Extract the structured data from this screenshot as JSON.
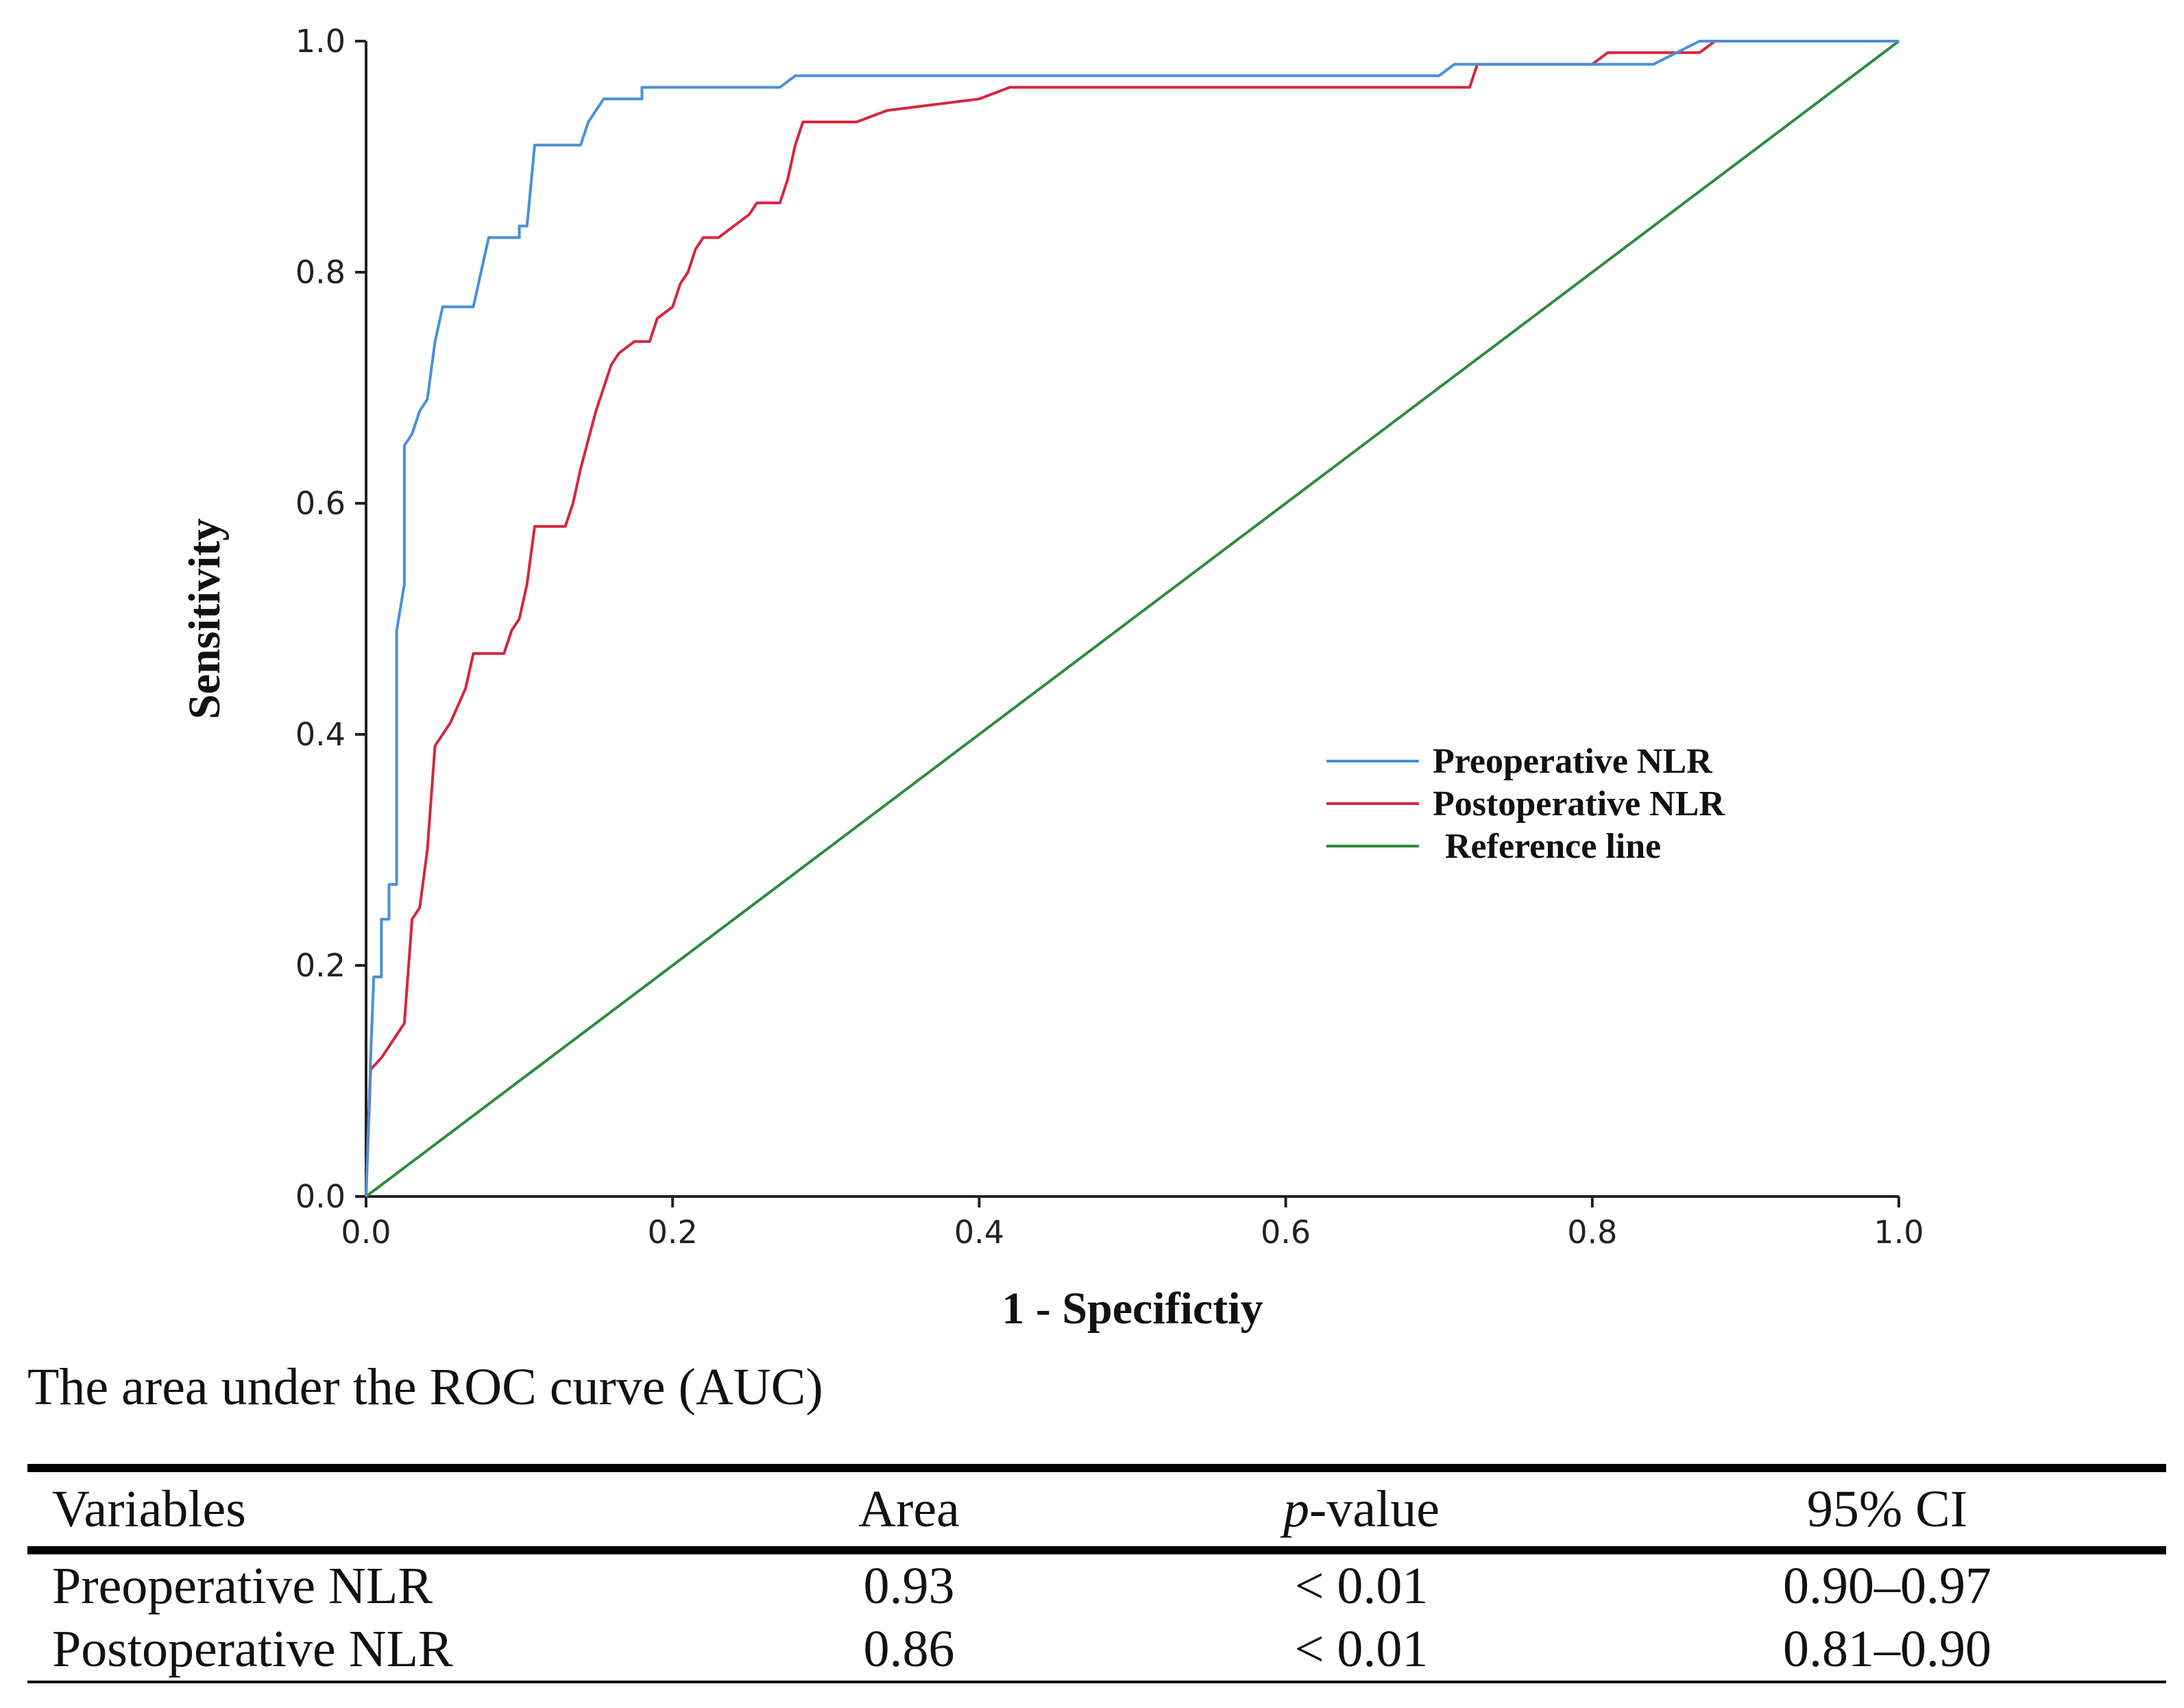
{
  "chart_data": {
    "type": "line",
    "title": "",
    "xlabel": "1 - Specifictiy",
    "ylabel": "Sensitivity",
    "xlim": [
      0.0,
      1.0
    ],
    "ylim": [
      0.0,
      1.0
    ],
    "x_ticks": [
      "0.0",
      "0.2",
      "0.4",
      "0.6",
      "0.8",
      "1.0"
    ],
    "y_ticks": [
      "0.0",
      "0.2",
      "0.4",
      "0.6",
      "0.8",
      "1.0"
    ],
    "grid": false,
    "legend_position": "center-right",
    "series": [
      {
        "name": "Preoperative NLR",
        "color": "#4a90d9",
        "points": [
          [
            0,
            0
          ],
          [
            0.003,
            0.12
          ],
          [
            0.005,
            0.19
          ],
          [
            0.01,
            0.19
          ],
          [
            0.01,
            0.24
          ],
          [
            0.015,
            0.24
          ],
          [
            0.015,
            0.27
          ],
          [
            0.02,
            0.27
          ],
          [
            0.02,
            0.49
          ],
          [
            0.025,
            0.53
          ],
          [
            0.025,
            0.65
          ],
          [
            0.03,
            0.66
          ],
          [
            0.035,
            0.68
          ],
          [
            0.04,
            0.69
          ],
          [
            0.045,
            0.74
          ],
          [
            0.05,
            0.77
          ],
          [
            0.07,
            0.77
          ],
          [
            0.075,
            0.8
          ],
          [
            0.08,
            0.83
          ],
          [
            0.1,
            0.83
          ],
          [
            0.1,
            0.84
          ],
          [
            0.105,
            0.84
          ],
          [
            0.11,
            0.91
          ],
          [
            0.14,
            0.91
          ],
          [
            0.145,
            0.93
          ],
          [
            0.155,
            0.95
          ],
          [
            0.18,
            0.95
          ],
          [
            0.18,
            0.96
          ],
          [
            0.27,
            0.96
          ],
          [
            0.28,
            0.97
          ],
          [
            0.7,
            0.97
          ],
          [
            0.71,
            0.98
          ],
          [
            0.84,
            0.98
          ],
          [
            0.855,
            0.99
          ],
          [
            0.87,
            1.0
          ],
          [
            1.0,
            1.0
          ]
        ]
      },
      {
        "name": "Postoperative NLR",
        "color": "#d7263d",
        "points": [
          [
            0,
            0
          ],
          [
            0.003,
            0.11
          ],
          [
            0.01,
            0.12
          ],
          [
            0.02,
            0.14
          ],
          [
            0.025,
            0.15
          ],
          [
            0.03,
            0.24
          ],
          [
            0.035,
            0.25
          ],
          [
            0.04,
            0.3
          ],
          [
            0.045,
            0.39
          ],
          [
            0.055,
            0.41
          ],
          [
            0.065,
            0.44
          ],
          [
            0.07,
            0.47
          ],
          [
            0.09,
            0.47
          ],
          [
            0.095,
            0.49
          ],
          [
            0.1,
            0.5
          ],
          [
            0.105,
            0.53
          ],
          [
            0.11,
            0.58
          ],
          [
            0.13,
            0.58
          ],
          [
            0.135,
            0.6
          ],
          [
            0.14,
            0.63
          ],
          [
            0.15,
            0.68
          ],
          [
            0.16,
            0.72
          ],
          [
            0.165,
            0.73
          ],
          [
            0.175,
            0.74
          ],
          [
            0.185,
            0.74
          ],
          [
            0.19,
            0.76
          ],
          [
            0.2,
            0.77
          ],
          [
            0.205,
            0.79
          ],
          [
            0.21,
            0.8
          ],
          [
            0.215,
            0.82
          ],
          [
            0.22,
            0.83
          ],
          [
            0.23,
            0.83
          ],
          [
            0.24,
            0.84
          ],
          [
            0.25,
            0.85
          ],
          [
            0.255,
            0.86
          ],
          [
            0.27,
            0.86
          ],
          [
            0.275,
            0.88
          ],
          [
            0.28,
            0.91
          ],
          [
            0.285,
            0.93
          ],
          [
            0.32,
            0.93
          ],
          [
            0.34,
            0.94
          ],
          [
            0.4,
            0.95
          ],
          [
            0.42,
            0.96
          ],
          [
            0.44,
            0.96
          ],
          [
            0.5,
            0.96
          ],
          [
            0.72,
            0.96
          ],
          [
            0.725,
            0.98
          ],
          [
            0.8,
            0.98
          ],
          [
            0.81,
            0.99
          ],
          [
            0.87,
            0.99
          ],
          [
            0.88,
            1.0
          ],
          [
            1.0,
            1.0
          ]
        ]
      },
      {
        "name": "Reference line",
        "color": "#2e8b3e",
        "points": [
          [
            0,
            0
          ],
          [
            1,
            1
          ]
        ]
      }
    ]
  },
  "caption": "The area under the ROC curve (AUC)",
  "table": {
    "headers": {
      "variables": "Variables",
      "area": "Area",
      "p_italic": "p",
      "p_rest": "-value",
      "ci": "95% CI"
    },
    "rows": [
      {
        "variable": "Preoperative NLR",
        "area": "0.93",
        "p_value": "< 0.01",
        "ci": "0.90–0.97"
      },
      {
        "variable": "Postoperative NLR",
        "area": "0.86",
        "p_value": "< 0.01",
        "ci": "0.81–0.90"
      }
    ]
  }
}
